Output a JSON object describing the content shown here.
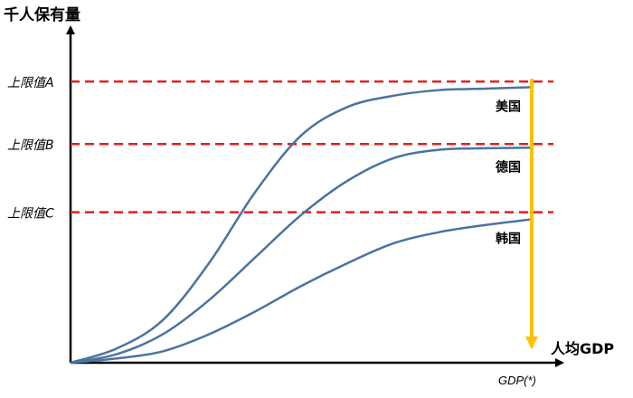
{
  "chart_data": {
    "type": "line",
    "title": "",
    "ylabel": "千人保有量",
    "xlabel": "人均GDP",
    "x_marker_label": "GDP(*)",
    "xlim": [
      0,
      100
    ],
    "ylim": [
      0,
      100
    ],
    "grid": false,
    "legend": "none",
    "reference_lines": [
      {
        "label": "上限值A",
        "y": 99
      },
      {
        "label": "上限值B",
        "y": 77
      },
      {
        "label": "上限值C",
        "y": 53
      }
    ],
    "series": [
      {
        "name": "美国",
        "x": [
          0,
          10,
          20,
          30,
          40,
          50,
          60,
          70,
          80,
          90,
          100
        ],
        "y": [
          0,
          5,
          15,
          35,
          60,
          80,
          90,
          94,
          96,
          96.5,
          97
        ]
      },
      {
        "name": "德国",
        "x": [
          0,
          10,
          20,
          30,
          40,
          50,
          60,
          70,
          80,
          90,
          100
        ],
        "y": [
          0,
          3,
          10,
          22,
          37,
          52,
          64,
          72,
          75,
          75.5,
          75.7
        ]
      },
      {
        "name": "韩国",
        "x": [
          0,
          10,
          20,
          30,
          40,
          50,
          60,
          70,
          80,
          90,
          100
        ],
        "y": [
          0,
          1.5,
          4,
          10,
          18,
          27,
          35,
          42,
          46,
          48.5,
          50.5
        ]
      }
    ],
    "colors": {
      "curve": "#4a73a0",
      "reference": "#e02020",
      "arrow": "#ffc000",
      "axis": "#000000"
    }
  }
}
